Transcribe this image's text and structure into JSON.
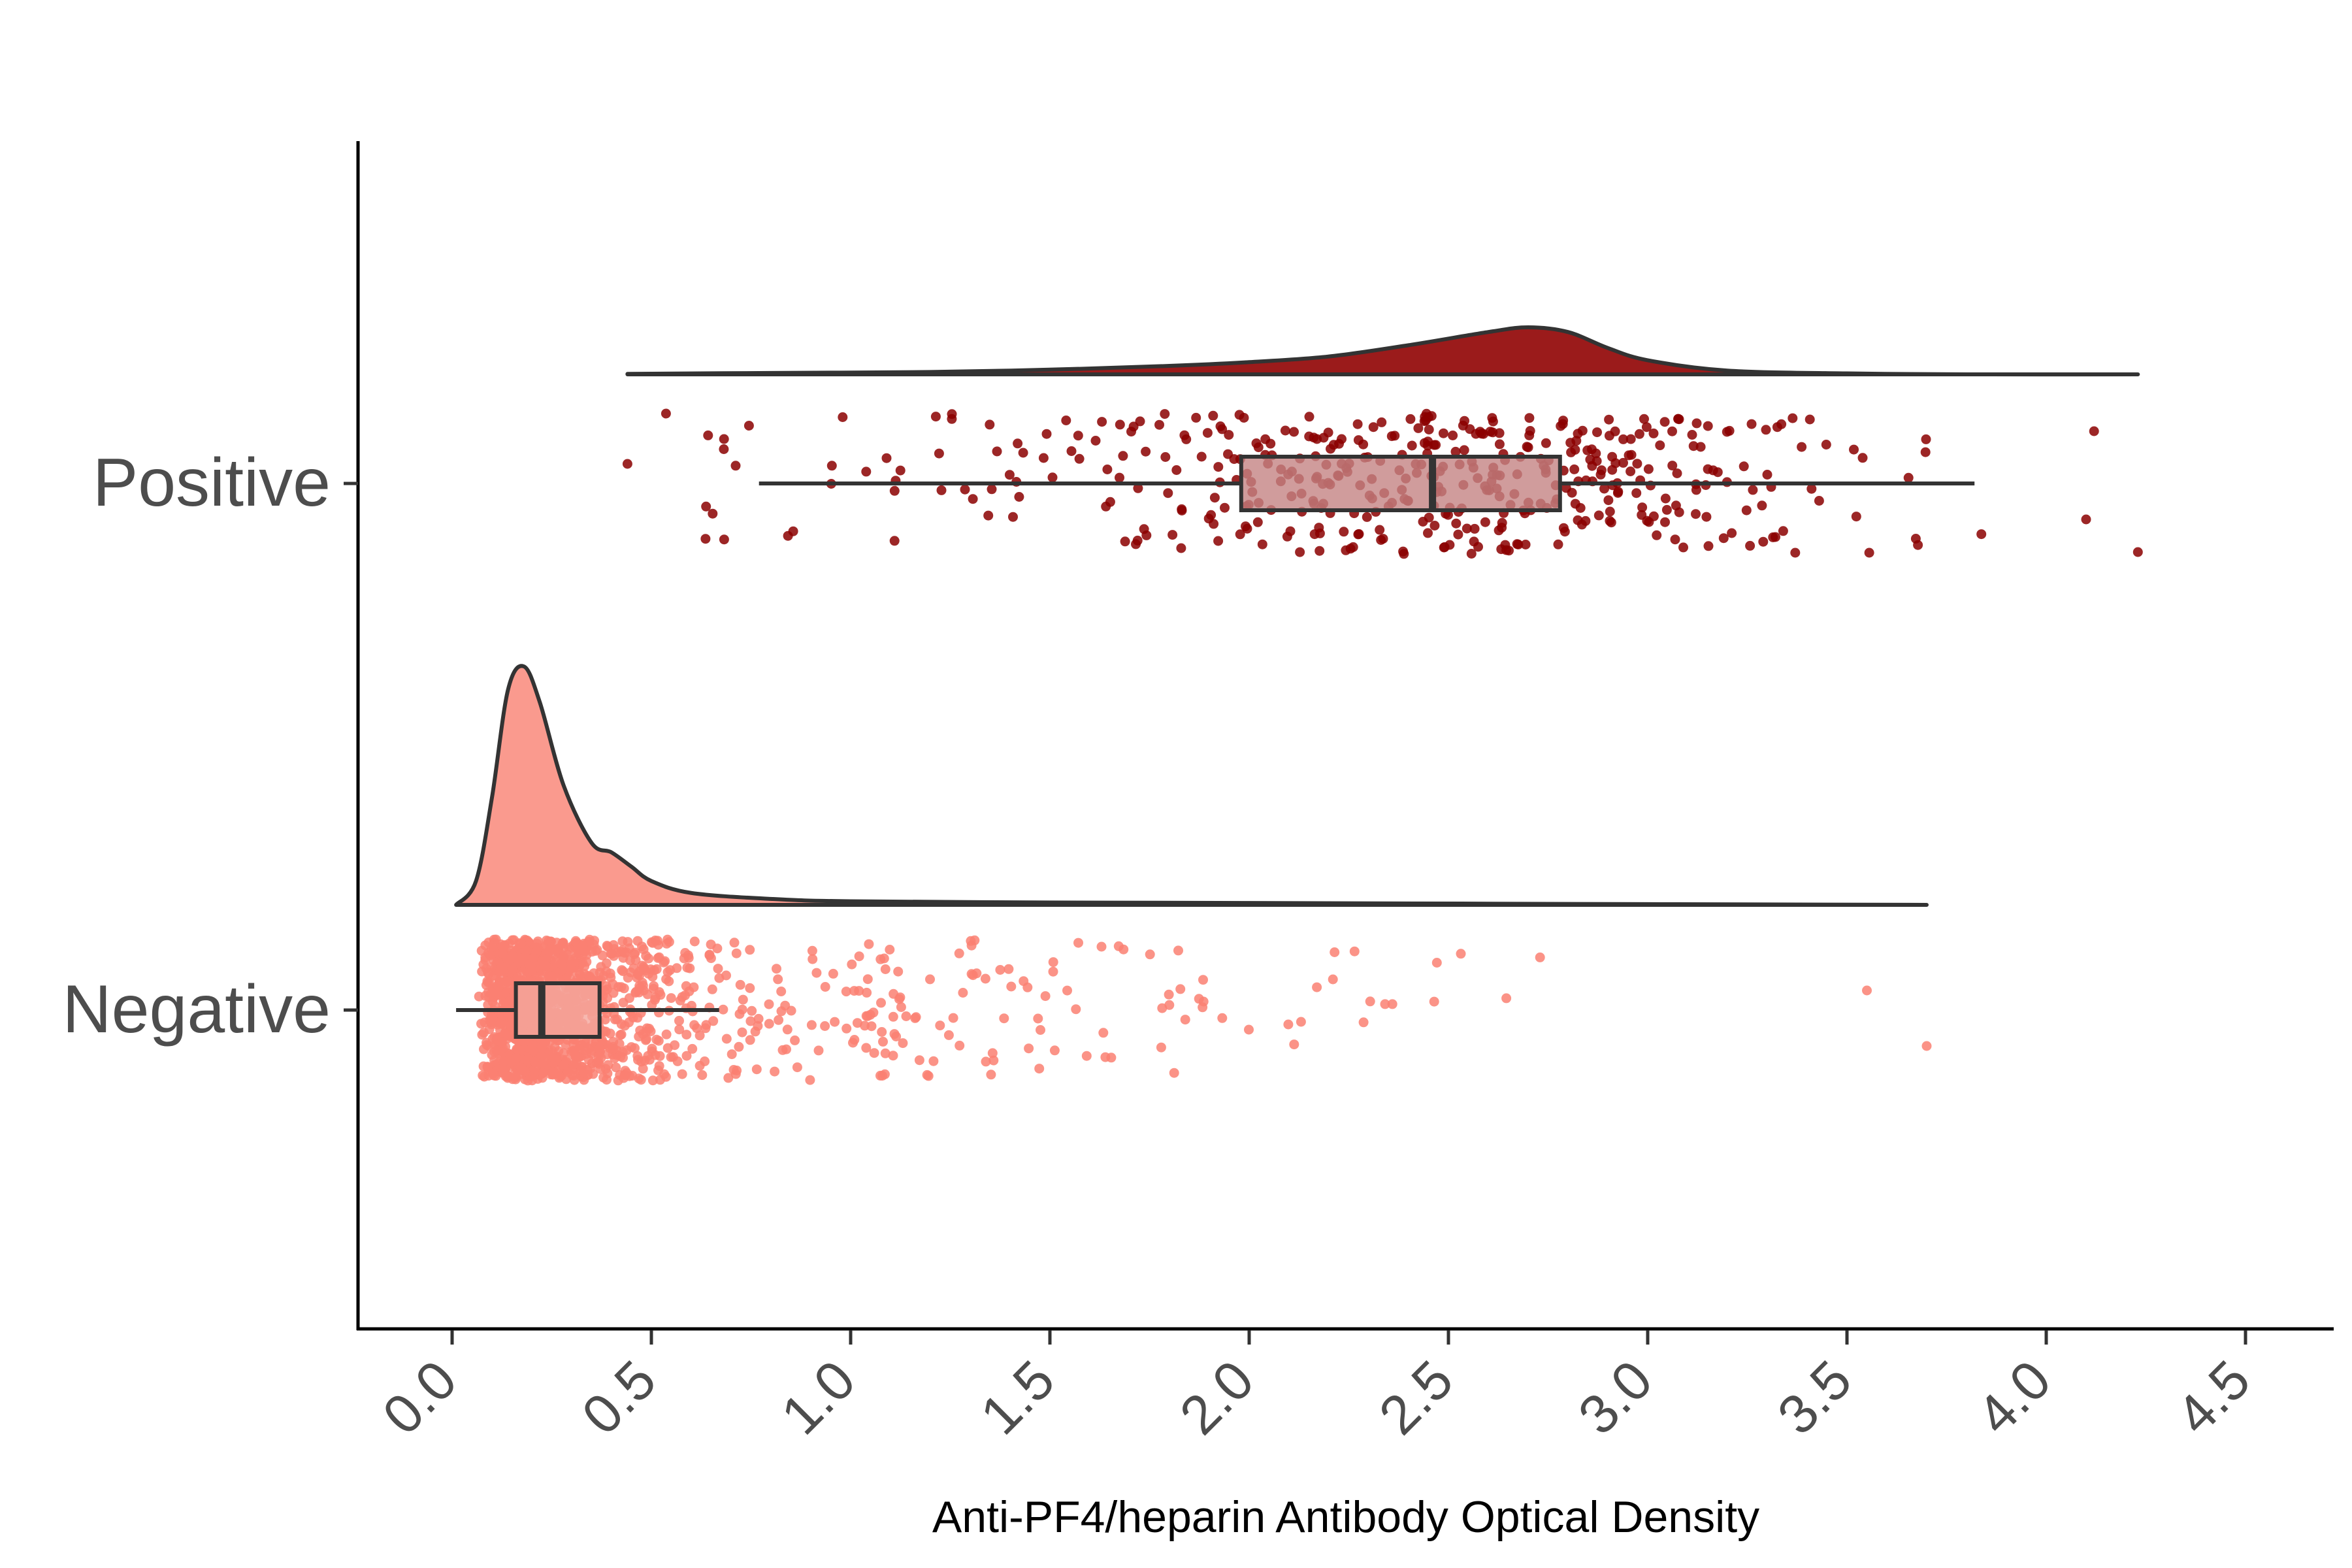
{
  "chart_data": {
    "type": "raincloud",
    "title": "",
    "xlabel": "Anti-PF4/heparin Antibody Optical Density",
    "ylabel": "",
    "xlim": [
      -0.23,
      4.72
    ],
    "x_ticks": [
      0.0,
      0.5,
      1.0,
      1.5,
      2.0,
      2.5,
      3.0,
      3.5,
      4.0,
      4.5
    ],
    "x_tick_labels": [
      "0.0",
      "0.5",
      "1.0",
      "1.5",
      "2.0",
      "2.5",
      "3.0",
      "3.5",
      "4.0",
      "4.5"
    ],
    "grid": false,
    "legend": "none",
    "groups": [
      {
        "name": "Positive",
        "fill": "#9b1b1b",
        "point_color": "#8b0000",
        "box_fill": "#c48383",
        "n_points": 450,
        "density": {
          "x": [
            0.44,
            0.8,
            1.2,
            1.5,
            1.8,
            2.0,
            2.2,
            2.4,
            2.6,
            2.7,
            2.8,
            2.9,
            3.0,
            3.2,
            3.5,
            3.8,
            4.23
          ],
          "y": [
            0.01,
            0.03,
            0.05,
            0.1,
            0.18,
            0.26,
            0.38,
            0.62,
            0.9,
            1.0,
            0.9,
            0.56,
            0.3,
            0.08,
            0.02,
            0.0,
            0.0
          ]
        },
        "box": {
          "whisker_low": 0.77,
          "q1": 1.98,
          "median": 2.46,
          "q3": 2.78,
          "whisker_high": 3.82
        },
        "outliers": [
          0.44,
          4.1,
          4.12,
          4.23
        ],
        "range": [
          0.44,
          4.23
        ]
      },
      {
        "name": "Negative",
        "fill": "#fa9a8e",
        "point_color": "#fa8072",
        "box_fill": "#f4a69c",
        "n_points": 1500,
        "density": {
          "x": [
            0.01,
            0.06,
            0.1,
            0.14,
            0.18,
            0.22,
            0.28,
            0.35,
            0.4,
            0.45,
            0.5,
            0.6,
            0.8,
            1.0,
            1.5,
            2.0,
            3.0,
            3.7
          ],
          "y": [
            0.0,
            0.1,
            0.45,
            0.9,
            1.0,
            0.85,
            0.5,
            0.26,
            0.22,
            0.16,
            0.1,
            0.05,
            0.025,
            0.015,
            0.01,
            0.008,
            0.003,
            0.0
          ]
        },
        "box": {
          "whisker_low": 0.01,
          "q1": 0.16,
          "median": 0.225,
          "q3": 0.37,
          "whisker_high": 0.67
        },
        "outliers": [
          3.55,
          3.7
        ],
        "range": [
          0.01,
          3.7
        ]
      }
    ]
  }
}
